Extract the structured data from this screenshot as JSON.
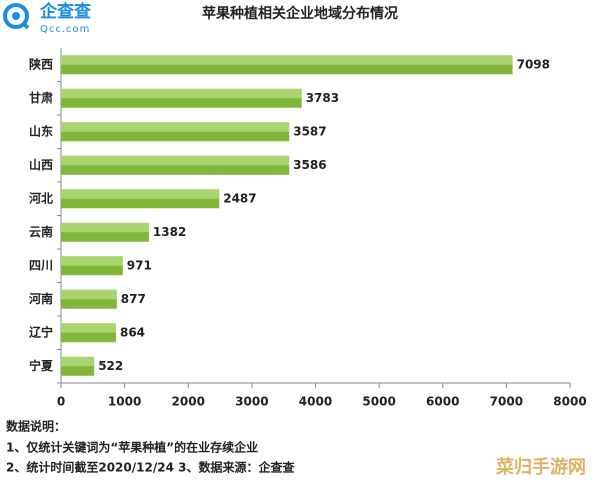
{
  "logo": {
    "name": "企查查",
    "url": "Qcc.com"
  },
  "chart_data": {
    "type": "bar",
    "orientation": "horizontal",
    "title": "苹果种植相关企业地域分布情况",
    "categories": [
      "陕西",
      "甘肃",
      "山东",
      "山西",
      "河北",
      "云南",
      "四川",
      "河南",
      "辽宁",
      "宁夏"
    ],
    "values": [
      7098,
      3783,
      3587,
      3586,
      2487,
      1382,
      971,
      877,
      864,
      522
    ],
    "color": "#8cc63f",
    "xlim": [
      0,
      8000
    ],
    "xticks": [
      0,
      1000,
      2000,
      3000,
      4000,
      5000,
      6000,
      7000,
      8000
    ],
    "grid": false
  },
  "notes": [
    "数据说明：",
    "1、仅统计关键词为“苹果种植”的在业存续企业",
    "2、统计时间截至2020/12/24  3、数据来源：企查查"
  ],
  "watermark": "菜归手游网"
}
